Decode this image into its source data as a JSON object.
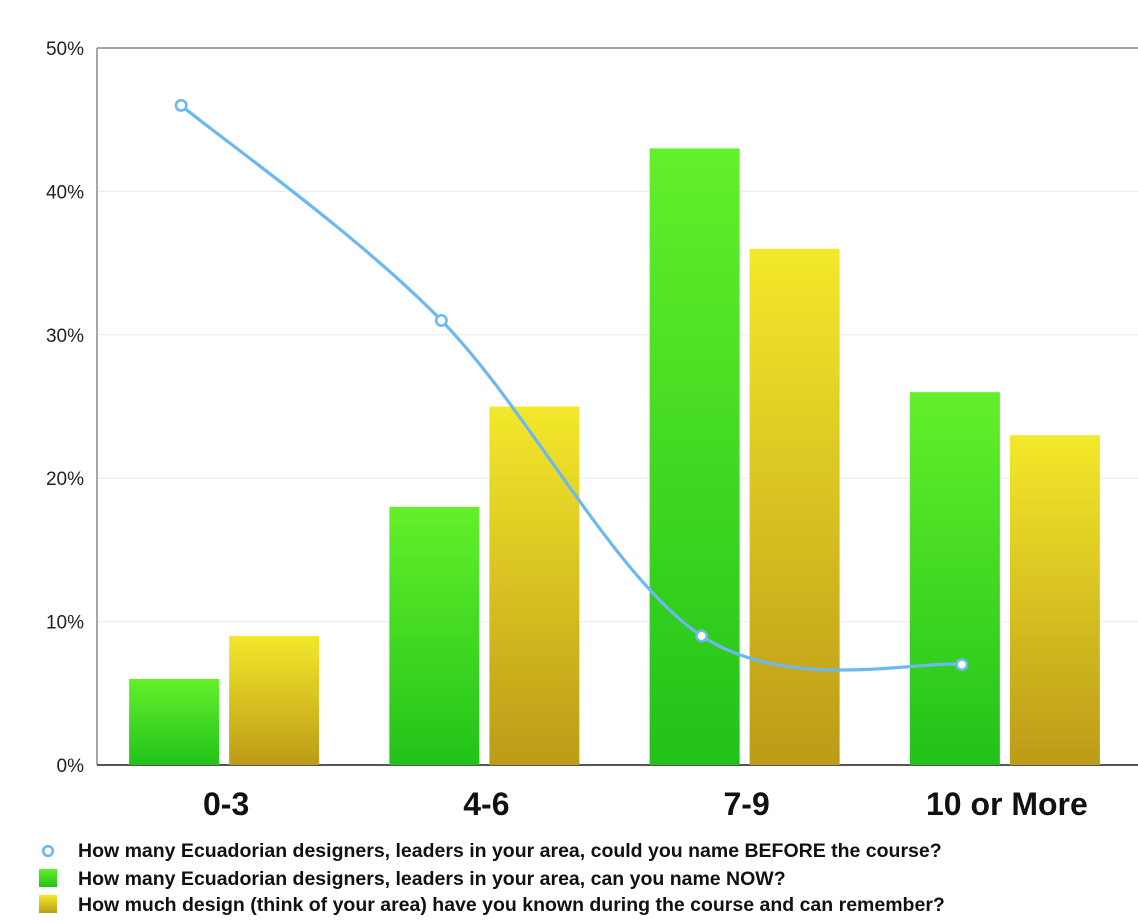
{
  "chart_data": {
    "type": "bar",
    "categories": [
      "0-3",
      "4-6",
      "7-9",
      "10 or More"
    ],
    "ylim": [
      0,
      50
    ],
    "yticks": [
      0,
      10,
      20,
      30,
      40,
      50
    ],
    "ytick_labels": [
      "0%",
      "10%",
      "20%",
      "30%",
      "40%",
      "50%"
    ],
    "grid": true,
    "legend_position": "bottom",
    "series": [
      {
        "name": "How many Ecuadorian designers, leaders in your area, could you name BEFORE the course?",
        "kind": "line",
        "color": "#6cb8f0",
        "values": [
          46,
          31,
          9,
          7
        ]
      },
      {
        "name": "How many Ecuadorian designers, leaders in your area, can you name NOW?",
        "kind": "bar",
        "color": "#3ed63a",
        "values": [
          6,
          18,
          43,
          26
        ]
      },
      {
        "name": "How much design (think of your area) have you known during the course and can remember?",
        "kind": "bar",
        "color": "#e6cc22",
        "values": [
          9,
          25,
          36,
          23
        ]
      }
    ]
  }
}
